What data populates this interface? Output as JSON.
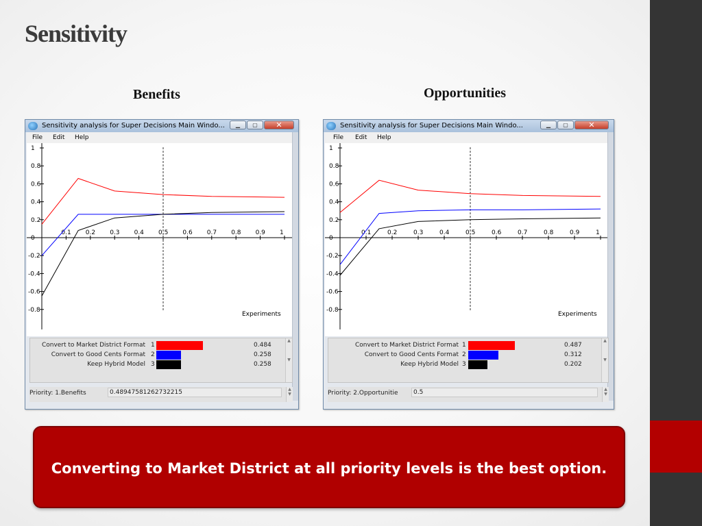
{
  "slide": {
    "title": "Sensitivity",
    "conclusion": "Converting to Market District at all priority levels is the best option."
  },
  "panels": [
    {
      "heading": "Benefits",
      "window_title": "Sensitivity analysis for Super Decisions Main Windo...",
      "menu": [
        "File",
        "Edit",
        "Help"
      ],
      "x_label": "Experiments",
      "y_ticks": [
        "1",
        "0.8",
        "0.6",
        "0.4",
        "0.2",
        "0",
        "-0.2",
        "-0.4",
        "-0.6",
        "-0.8"
      ],
      "x_ticks": [
        "0.1",
        "0.2",
        "0.3",
        "0.4",
        "0.5",
        "0.6",
        "0.7",
        "0.8",
        "0.9",
        "1"
      ],
      "marker_x": 0.5,
      "alternatives": [
        {
          "label": "Convert to Market District Format",
          "num": "1",
          "value": "0.484",
          "color": "#ff0000"
        },
        {
          "label": "Convert to Good Cents Format",
          "num": "2",
          "value": "0.258",
          "color": "#0000ff"
        },
        {
          "label": "Keep Hybrid Model",
          "num": "3",
          "value": "0.258",
          "color": "#000000"
        }
      ],
      "status_label": "Priority: 1.Benefits",
      "status_value": "0.48947581262732215"
    },
    {
      "heading": "Opportunities",
      "window_title": "Sensitivity analysis for Super Decisions Main Windo...",
      "menu": [
        "File",
        "Edit",
        "Help"
      ],
      "x_label": "Experiments",
      "y_ticks": [
        "1",
        "0.8",
        "0.6",
        "0.4",
        "0.2",
        "0",
        "-0.2",
        "-0.4",
        "-0.6",
        "-0.8"
      ],
      "x_ticks": [
        "0.1",
        "0.2",
        "0.3",
        "0.4",
        "0.5",
        "0.6",
        "0.7",
        "0.8",
        "0.9",
        "1"
      ],
      "marker_x": 0.5,
      "alternatives": [
        {
          "label": "Convert to Market District Format",
          "num": "1",
          "value": "0.487",
          "color": "#ff0000"
        },
        {
          "label": "Convert to Good Cents Format",
          "num": "2",
          "value": "0.312",
          "color": "#0000ff"
        },
        {
          "label": "Keep Hybrid Model",
          "num": "3",
          "value": "0.202",
          "color": "#000000"
        }
      ],
      "status_label": "Priority: 2.Opportunitie",
      "status_value": "0.5"
    }
  ],
  "chart_data": [
    {
      "type": "line",
      "xlabel": "Experiments",
      "xlim": [
        0,
        1
      ],
      "ylim": [
        -1,
        1
      ],
      "grid": false,
      "series": [
        {
          "x": [
            0,
            0.15,
            0.3,
            0.5,
            0.7,
            1.0
          ],
          "values": [
            0.15,
            0.66,
            0.52,
            0.48,
            0.46,
            0.45
          ],
          "color": "#ff0000"
        },
        {
          "x": [
            0,
            0.15,
            0.3,
            0.5,
            0.7,
            1.0
          ],
          "values": [
            -0.2,
            0.26,
            0.26,
            0.26,
            0.26,
            0.26
          ],
          "color": "#0000ff"
        },
        {
          "x": [
            0,
            0.15,
            0.3,
            0.5,
            0.7,
            1.0
          ],
          "values": [
            -0.65,
            0.08,
            0.22,
            0.26,
            0.28,
            0.29
          ],
          "color": "#000000"
        }
      ]
    },
    {
      "type": "line",
      "xlabel": "Experiments",
      "xlim": [
        0,
        1
      ],
      "ylim": [
        -1,
        1
      ],
      "grid": false,
      "series": [
        {
          "x": [
            0,
            0.15,
            0.3,
            0.5,
            0.7,
            1.0
          ],
          "values": [
            0.28,
            0.64,
            0.53,
            0.49,
            0.47,
            0.46
          ],
          "color": "#ff0000"
        },
        {
          "x": [
            0,
            0.15,
            0.3,
            0.5,
            0.7,
            1.0
          ],
          "values": [
            -0.3,
            0.27,
            0.3,
            0.31,
            0.31,
            0.32
          ],
          "color": "#0000ff"
        },
        {
          "x": [
            0,
            0.15,
            0.3,
            0.5,
            0.7,
            1.0
          ],
          "values": [
            -0.42,
            0.1,
            0.18,
            0.2,
            0.21,
            0.22
          ],
          "color": "#000000"
        }
      ]
    }
  ]
}
